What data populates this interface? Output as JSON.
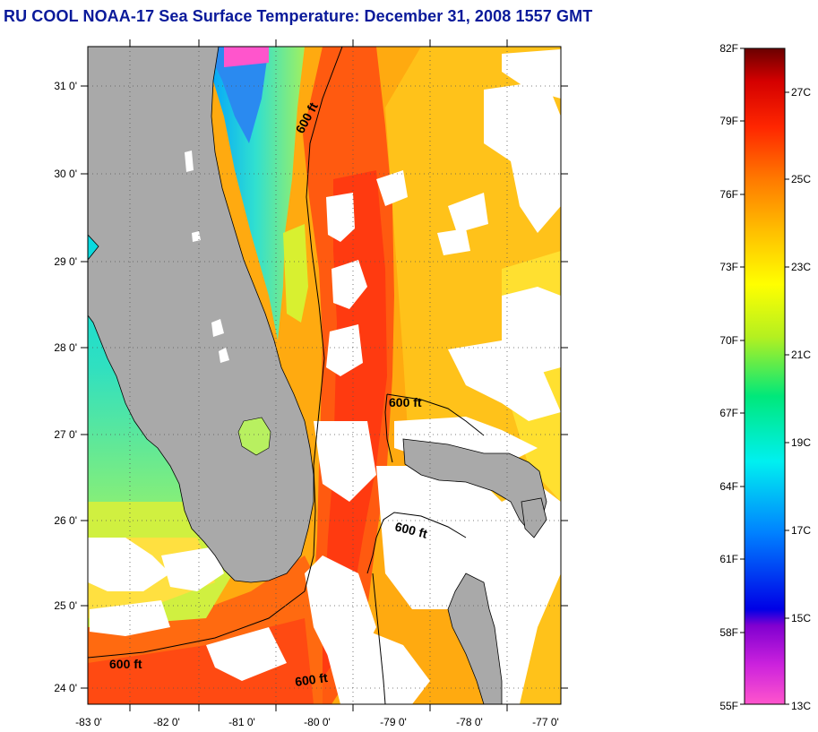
{
  "title": "RU COOL  NOAA-17  Sea Surface Temperature:  December 31, 2008 1557 GMT",
  "map": {
    "lat_labels": [
      "31 0'",
      "30 0'",
      "29 0'",
      "28 0'",
      "27 0'",
      "26 0'",
      "25 0'",
      "24 0'"
    ],
    "lon_labels": [
      "-83 0'",
      "-82 0'",
      "-81 0'",
      "-80 0'",
      "-79 0'",
      "-78 0'",
      "-77 0'"
    ],
    "contour_labels": [
      "600 ft",
      "600 ft",
      "600 ft",
      "600 ft",
      "600 ft"
    ],
    "land_color": "#a9a9a9",
    "cloud_color": "#ffffff"
  },
  "colorbar": {
    "fahrenheit_labels": [
      "82F",
      "79F",
      "76F",
      "73F",
      "70F",
      "67F",
      "64F",
      "61F",
      "58F",
      "55F"
    ],
    "celsius_labels": [
      "27C",
      "25C",
      "23C",
      "21C",
      "19C",
      "17C",
      "15C",
      "13C"
    ],
    "colors": [
      "#ff55cc",
      "#a000d8",
      "#0000e6",
      "#0090ff",
      "#00f0f0",
      "#00e87a",
      "#c8ff00",
      "#ffff00",
      "#ffcc00",
      "#ff9000",
      "#ff4800",
      "#e60000",
      "#7a0000"
    ]
  }
}
